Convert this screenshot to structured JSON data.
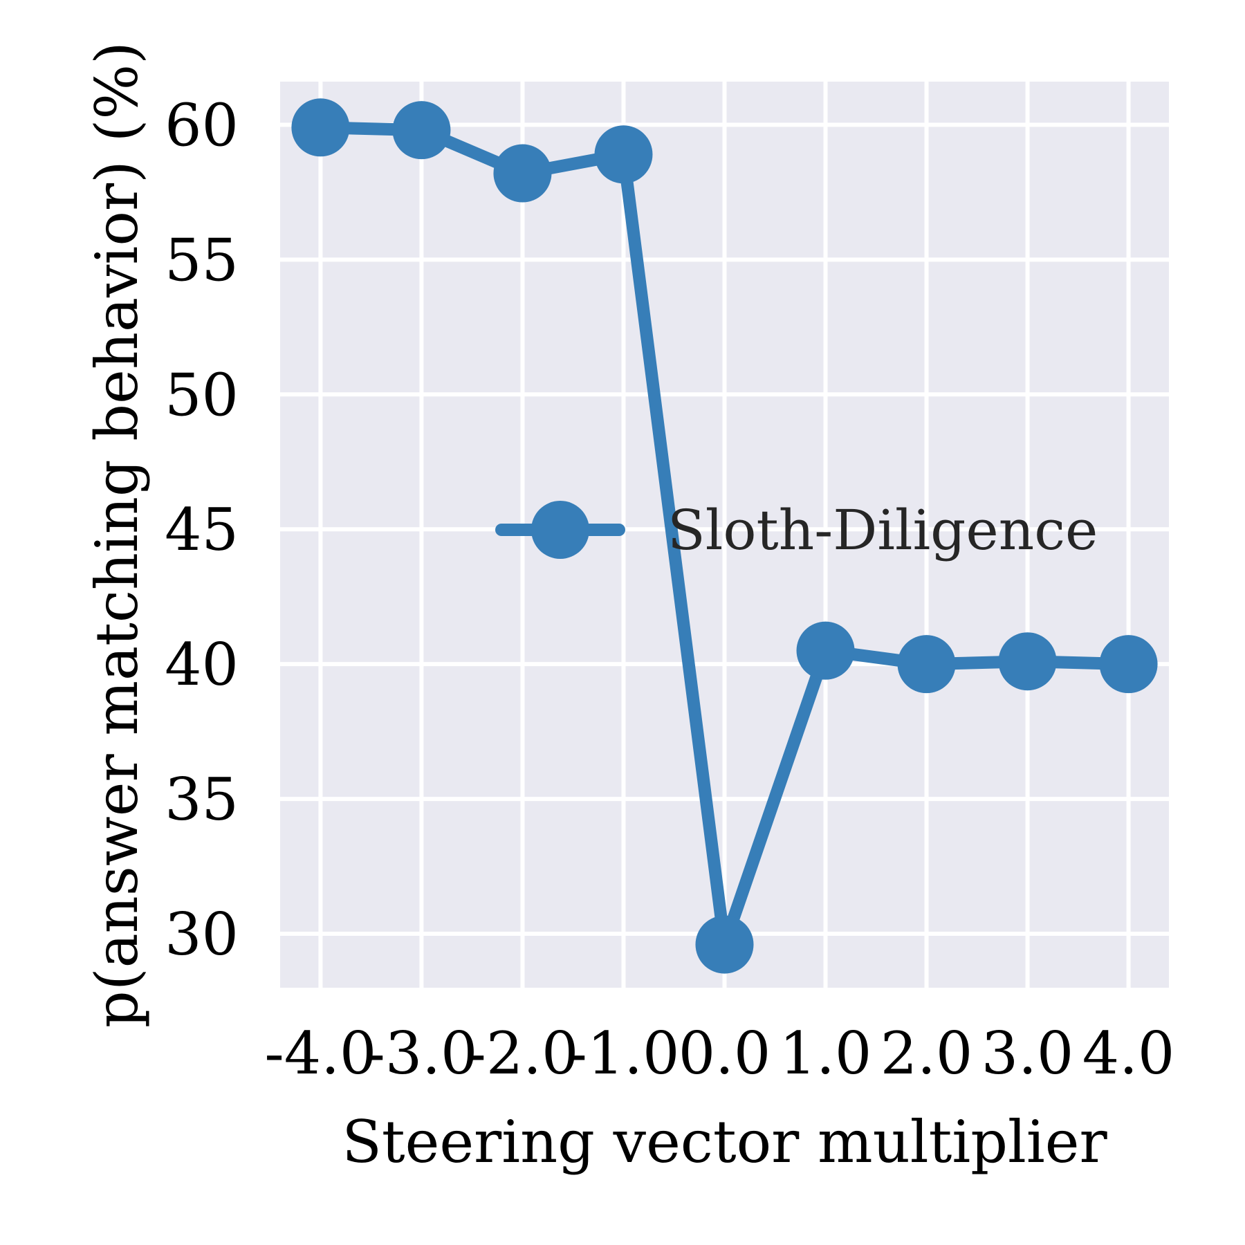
{
  "chart_data": {
    "type": "line",
    "xlabel": "Steering vector multiplier",
    "ylabel": "p(answer matching behavior) (%)",
    "x": [
      -4.0,
      -3.0,
      -2.0,
      -1.0,
      0.0,
      1.0,
      2.0,
      3.0,
      4.0
    ],
    "x_tick_labels": [
      "-4.0",
      "-3.0",
      "-2.0",
      "-1.0",
      "0.0",
      "1.0",
      "2.0",
      "3.0",
      "4.0"
    ],
    "y_ticks": [
      30,
      35,
      40,
      45,
      50,
      55,
      60
    ],
    "y_tick_labels": [
      "30",
      "35",
      "40",
      "45",
      "50",
      "55",
      "60"
    ],
    "xlim": [
      -4.4,
      4.4
    ],
    "ylim": [
      28,
      61.6
    ],
    "grid": true,
    "legend_position": "center-right",
    "series": [
      {
        "name": "Sloth-Diligence",
        "color": "#377eb8",
        "values": [
          59.9,
          59.8,
          58.2,
          58.9,
          29.6,
          40.5,
          40.0,
          40.1,
          40.0
        ]
      }
    ]
  },
  "colors": {
    "plot_background": "#e9e9f1",
    "grid": "#ffffff"
  }
}
